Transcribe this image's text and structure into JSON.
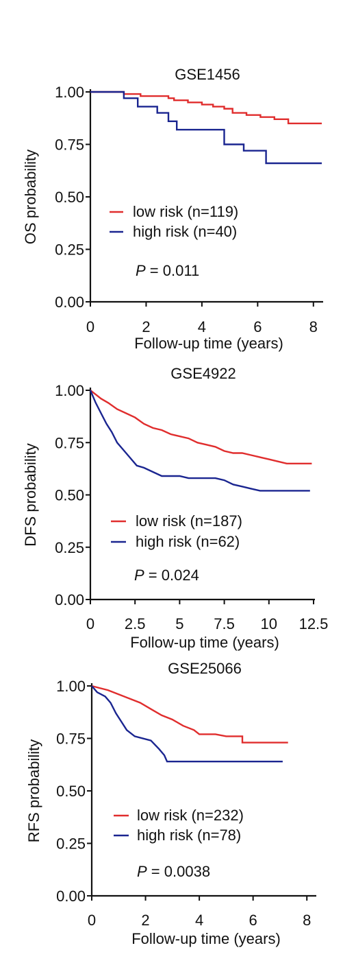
{
  "chart_data": [
    {
      "type": "line",
      "title": "GSE1456",
      "xlabel": "Follow-up time (years)",
      "ylabel": "OS probability",
      "xlim": [
        0,
        8.3
      ],
      "ylim": [
        0,
        1
      ],
      "xticks": [
        0,
        2,
        4,
        6,
        8
      ],
      "xtick_labels": [
        "0",
        "2",
        "4",
        "6",
        "8"
      ],
      "yticks": [
        0,
        0.25,
        0.5,
        0.75,
        1
      ],
      "ytick_labels": [
        "0.00",
        "0.25",
        "0.50",
        "0.75",
        "1.00"
      ],
      "legend_position": "center",
      "p_label": "P",
      "p_value": " = 0.011",
      "series": [
        {
          "name": "low risk (n=119)",
          "color": "#e02d2d",
          "points": [
            [
              0,
              1
            ],
            [
              1.2,
              1
            ],
            [
              1.2,
              0.99
            ],
            [
              1.8,
              0.99
            ],
            [
              1.8,
              0.98
            ],
            [
              2.8,
              0.98
            ],
            [
              2.8,
              0.97
            ],
            [
              3.0,
              0.97
            ],
            [
              3.0,
              0.96
            ],
            [
              3.5,
              0.96
            ],
            [
              3.5,
              0.95
            ],
            [
              4.0,
              0.95
            ],
            [
              4.0,
              0.94
            ],
            [
              4.4,
              0.94
            ],
            [
              4.4,
              0.93
            ],
            [
              4.8,
              0.93
            ],
            [
              4.8,
              0.92
            ],
            [
              5.1,
              0.92
            ],
            [
              5.1,
              0.9
            ],
            [
              5.6,
              0.9
            ],
            [
              5.6,
              0.89
            ],
            [
              6.1,
              0.89
            ],
            [
              6.1,
              0.88
            ],
            [
              6.6,
              0.88
            ],
            [
              6.6,
              0.87
            ],
            [
              7.1,
              0.87
            ],
            [
              7.1,
              0.85
            ],
            [
              8.3,
              0.85
            ]
          ]
        },
        {
          "name": "high risk (n=40)",
          "color": "#1a2590",
          "points": [
            [
              0,
              1
            ],
            [
              1.2,
              1
            ],
            [
              1.2,
              0.97
            ],
            [
              1.7,
              0.97
            ],
            [
              1.7,
              0.93
            ],
            [
              2.4,
              0.93
            ],
            [
              2.4,
              0.9
            ],
            [
              2.8,
              0.9
            ],
            [
              2.8,
              0.86
            ],
            [
              3.1,
              0.86
            ],
            [
              3.1,
              0.82
            ],
            [
              4.8,
              0.82
            ],
            [
              4.8,
              0.75
            ],
            [
              5.5,
              0.75
            ],
            [
              5.5,
              0.72
            ],
            [
              6.3,
              0.72
            ],
            [
              6.3,
              0.66
            ],
            [
              8.3,
              0.66
            ]
          ]
        }
      ]
    },
    {
      "type": "line",
      "title": "GSE4922",
      "xlabel": "Follow-up time (years)",
      "ylabel": "DFS probability",
      "xlim": [
        0,
        12.5
      ],
      "ylim": [
        0,
        1
      ],
      "xticks": [
        0,
        2.5,
        5,
        7.5,
        10,
        12.5
      ],
      "xtick_labels": [
        "0",
        "2.5",
        "5",
        "7.5",
        "10",
        "12.5"
      ],
      "yticks": [
        0,
        0.25,
        0.5,
        0.75,
        1
      ],
      "ytick_labels": [
        "0.00",
        "0.25",
        "0.50",
        "0.75",
        "1.00"
      ],
      "legend_position": "center",
      "p_label": "P",
      "p_value": " = 0.024",
      "series": [
        {
          "name": "low risk (n=187)",
          "color": "#e02d2d",
          "points": [
            [
              0,
              1
            ],
            [
              0.3,
              0.98
            ],
            [
              0.6,
              0.96
            ],
            [
              1.0,
              0.94
            ],
            [
              1.5,
              0.91
            ],
            [
              2.0,
              0.89
            ],
            [
              2.5,
              0.87
            ],
            [
              3.0,
              0.84
            ],
            [
              3.5,
              0.82
            ],
            [
              4.0,
              0.81
            ],
            [
              4.5,
              0.79
            ],
            [
              5.0,
              0.78
            ],
            [
              5.5,
              0.77
            ],
            [
              6.0,
              0.75
            ],
            [
              6.5,
              0.74
            ],
            [
              7.0,
              0.73
            ],
            [
              7.5,
              0.71
            ],
            [
              8.0,
              0.7
            ],
            [
              8.5,
              0.7
            ],
            [
              9.0,
              0.69
            ],
            [
              9.5,
              0.68
            ],
            [
              10.0,
              0.67
            ],
            [
              10.5,
              0.66
            ],
            [
              11.0,
              0.65
            ],
            [
              11.5,
              0.65
            ],
            [
              12.0,
              0.65
            ],
            [
              12.4,
              0.65
            ]
          ]
        },
        {
          "name": "high risk (n=62)",
          "color": "#1a2590",
          "points": [
            [
              0,
              1
            ],
            [
              0.3,
              0.94
            ],
            [
              0.6,
              0.89
            ],
            [
              0.9,
              0.84
            ],
            [
              1.2,
              0.8
            ],
            [
              1.5,
              0.75
            ],
            [
              1.8,
              0.72
            ],
            [
              2.2,
              0.68
            ],
            [
              2.6,
              0.64
            ],
            [
              3.0,
              0.63
            ],
            [
              3.5,
              0.61
            ],
            [
              4.0,
              0.59
            ],
            [
              5.0,
              0.59
            ],
            [
              5.5,
              0.58
            ],
            [
              7.0,
              0.58
            ],
            [
              7.5,
              0.57
            ],
            [
              8.0,
              0.55
            ],
            [
              8.5,
              0.54
            ],
            [
              9.0,
              0.53
            ],
            [
              9.5,
              0.52
            ],
            [
              12.3,
              0.52
            ]
          ]
        }
      ]
    },
    {
      "type": "line",
      "title": "GSE25066",
      "xlabel": "Follow-up time (years)",
      "ylabel": "RFS probability",
      "xlim": [
        0,
        8.3
      ],
      "ylim": [
        0,
        1
      ],
      "xticks": [
        0,
        2,
        4,
        6,
        8
      ],
      "xtick_labels": [
        "0",
        "2",
        "4",
        "6",
        "8"
      ],
      "yticks": [
        0,
        0.25,
        0.5,
        0.75,
        1
      ],
      "ytick_labels": [
        "0.00",
        "0.25",
        "0.50",
        "0.75",
        "1.00"
      ],
      "legend_position": "center",
      "p_label": "P",
      "p_value": " = 0.0038",
      "series": [
        {
          "name": "low risk (n=232)",
          "color": "#e02d2d",
          "points": [
            [
              0,
              1
            ],
            [
              0.3,
              0.99
            ],
            [
              0.6,
              0.98
            ],
            [
              1.0,
              0.96
            ],
            [
              1.4,
              0.94
            ],
            [
              1.8,
              0.92
            ],
            [
              2.2,
              0.89
            ],
            [
              2.6,
              0.86
            ],
            [
              3.0,
              0.84
            ],
            [
              3.4,
              0.81
            ],
            [
              3.8,
              0.79
            ],
            [
              4.0,
              0.77
            ],
            [
              4.6,
              0.77
            ],
            [
              5.0,
              0.76
            ],
            [
              5.6,
              0.76
            ],
            [
              5.6,
              0.73
            ],
            [
              7.3,
              0.73
            ]
          ]
        },
        {
          "name": "high risk (n=78)",
          "color": "#1a2590",
          "points": [
            [
              0,
              1
            ],
            [
              0.2,
              0.97
            ],
            [
              0.5,
              0.95
            ],
            [
              0.7,
              0.92
            ],
            [
              0.9,
              0.87
            ],
            [
              1.1,
              0.83
            ],
            [
              1.3,
              0.79
            ],
            [
              1.6,
              0.76
            ],
            [
              2.2,
              0.74
            ],
            [
              2.5,
              0.7
            ],
            [
              2.7,
              0.67
            ],
            [
              2.8,
              0.64
            ],
            [
              7.1,
              0.64
            ]
          ]
        }
      ]
    }
  ]
}
